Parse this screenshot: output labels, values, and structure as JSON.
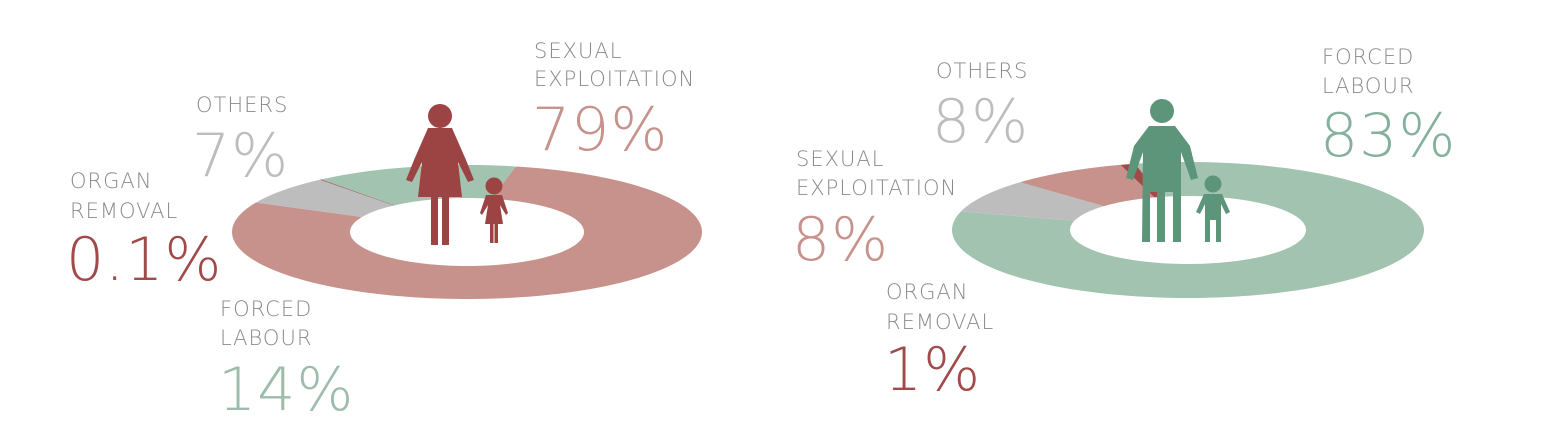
{
  "colors": {
    "sexual": "#c6928b",
    "forced": "#a2c3b0",
    "others": "#bdbdbd",
    "organ": "#a04a4a",
    "female_figure": "#9c4343",
    "male_figure": "#5d957b",
    "category_text": "#8a8a8a"
  },
  "chart_data": [
    {
      "type": "pie",
      "variant": "donut",
      "figure": "woman-and-girl-icon",
      "slices": [
        {
          "key": "sexual",
          "label_lines": [
            "SEXUAL",
            "EXPLOITATION"
          ],
          "value": 79,
          "value_label": "79%",
          "color": "#c6928b",
          "label_color": "#c6928b"
        },
        {
          "key": "others",
          "label_lines": [
            "OTHERS"
          ],
          "value": 7,
          "value_label": "7%",
          "color": "#bdbdbd",
          "label_color": "#bdbdbd"
        },
        {
          "key": "organ",
          "label_lines": [
            "ORGAN",
            "REMOVAL"
          ],
          "value": 0.1,
          "value_label": "0.1%",
          "color": "#a04a4a",
          "label_color": "#a04a4a"
        },
        {
          "key": "forced",
          "label_lines": [
            "FORCED",
            "LABOUR"
          ],
          "value": 14,
          "value_label": "14%",
          "color": "#a2c3b0",
          "label_color": "#9dbcaa"
        }
      ]
    },
    {
      "type": "pie",
      "variant": "donut",
      "figure": "man-and-boy-icon",
      "slices": [
        {
          "key": "forced",
          "label_lines": [
            "FORCED",
            "LABOUR"
          ],
          "value": 83,
          "value_label": "83%",
          "color": "#a2c3b0",
          "label_color": "#86b09c"
        },
        {
          "key": "others",
          "label_lines": [
            "OTHERS"
          ],
          "value": 8,
          "value_label": "8%",
          "color": "#bdbdbd",
          "label_color": "#bdbdbd"
        },
        {
          "key": "sexual",
          "label_lines": [
            "SEXUAL",
            "EXPLOITATION"
          ],
          "value": 8,
          "value_label": "8%",
          "color": "#c6928b",
          "label_color": "#c6928b"
        },
        {
          "key": "organ",
          "label_lines": [
            "ORGAN",
            "REMOVAL"
          ],
          "value": 1,
          "value_label": "1%",
          "color": "#a04a4a",
          "label_color": "#a04a4a"
        }
      ]
    }
  ]
}
